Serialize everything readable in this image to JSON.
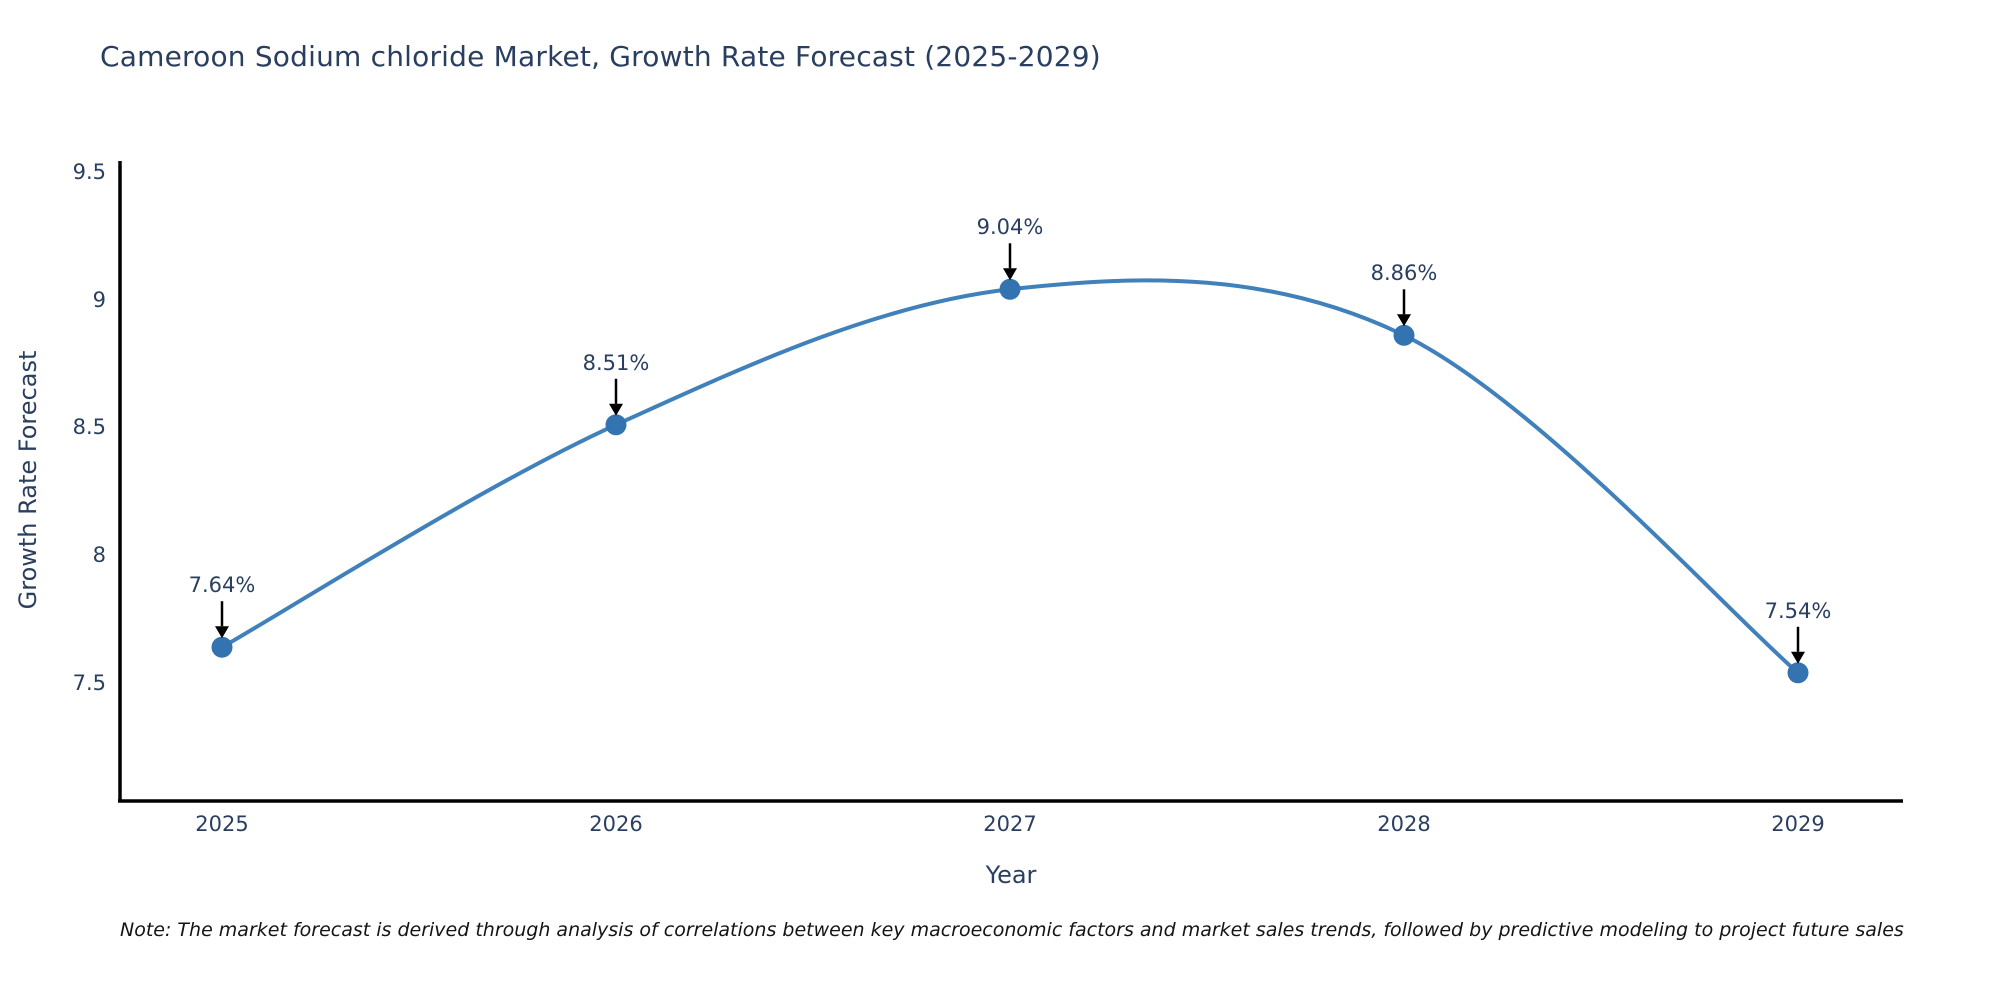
{
  "chart_data": {
    "type": "line",
    "title": "Cameroon Sodium chloride Market, Growth Rate Forecast (2025-2029)",
    "xlabel": "Year",
    "ylabel": "Growth Rate Forecast",
    "categories": [
      "2025",
      "2026",
      "2027",
      "2028",
      "2029"
    ],
    "series": [
      {
        "name": "Growth Rate Forecast",
        "values": [
          7.64,
          8.51,
          9.04,
          8.86,
          7.54
        ],
        "point_labels": [
          "7.64%",
          "8.51%",
          "9.04%",
          "8.86%",
          "7.54%"
        ]
      }
    ],
    "yticks": [
      7.5,
      8,
      8.5,
      9,
      9.5
    ],
    "ytick_labels": [
      "7.5",
      "8",
      "8.5",
      "9",
      "9.5"
    ],
    "ylim": [
      7.05,
      9.55
    ],
    "grid": false,
    "legend": "none",
    "line_style": "smooth-spline",
    "marker_style": "filled-circle",
    "annotation_style": "value-label-with-down-arrow",
    "colors": {
      "line": "#4181bb",
      "marker": "#3373b0",
      "axis": "#000000",
      "text": "#2a3f5f",
      "annotation_arrow": "#000000",
      "background": "#ffffff"
    }
  },
  "note": {
    "text": "Note: The market forecast is derived through analysis of correlations between key macroeconomic factors and market sales trends, followed by predictive modeling to project future sales"
  }
}
